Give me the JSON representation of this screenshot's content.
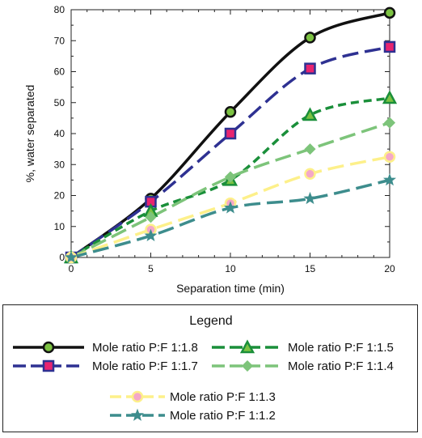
{
  "chart_data": {
    "type": "line",
    "xlabel": "Separation time (min)",
    "ylabel": "%, water separated",
    "xlim": [
      0,
      20
    ],
    "ylim": [
      0,
      80
    ],
    "x_ticks": [
      0,
      5,
      10,
      15,
      20
    ],
    "y_ticks": [
      0,
      10,
      20,
      30,
      40,
      50,
      60,
      70,
      80
    ],
    "grid": false,
    "legend_title": "Legend",
    "legend_placement": "bottom",
    "series": [
      {
        "name": "Mole ratio P:F 1:1.8",
        "x": [
          0,
          5,
          10,
          15,
          20
        ],
        "y": [
          0,
          19,
          47,
          71,
          79
        ],
        "color": "#111111",
        "marker": "circle",
        "marker_fill": "#7cc242",
        "dash": "solid"
      },
      {
        "name": "Mole ratio P:F 1:1.7",
        "x": [
          0,
          5,
          10,
          15,
          20
        ],
        "y": [
          0,
          18,
          40,
          61,
          68
        ],
        "color": "#2e3192",
        "marker": "square",
        "marker_fill": "#e8246f",
        "dash": "long-dash"
      },
      {
        "name": "Mole ratio P:F 1:1.5",
        "x": [
          0,
          5,
          10,
          15,
          20
        ],
        "y": [
          0,
          15,
          25,
          46,
          51.5
        ],
        "color": "#1a8f3a",
        "marker": "triangle",
        "marker_fill": "#7cc242",
        "dash": "dash"
      },
      {
        "name": "Mole ratio P:F 1:1.4",
        "x": [
          0,
          5,
          10,
          15,
          20
        ],
        "y": [
          0,
          13,
          26,
          35,
          43.5
        ],
        "color": "#7dc47a",
        "marker": "diamond",
        "marker_fill": "#7dc47a",
        "dash": "long-dash"
      },
      {
        "name": "Mole ratio P:F 1:1.3",
        "x": [
          0,
          5,
          10,
          15,
          20
        ],
        "y": [
          0,
          9,
          17.5,
          27,
          32.5
        ],
        "color": "#fdf08a",
        "marker": "circle",
        "marker_fill": "#f4a8c8",
        "dash": "long-dash"
      },
      {
        "name": "Mole ratio P:F 1:1.2",
        "x": [
          0,
          5,
          10,
          15,
          20
        ],
        "y": [
          0,
          7,
          16,
          19,
          25
        ],
        "color": "#3d8d8d",
        "marker": "star",
        "marker_fill": "#3d8d8d",
        "dash": "long-dash"
      }
    ]
  }
}
